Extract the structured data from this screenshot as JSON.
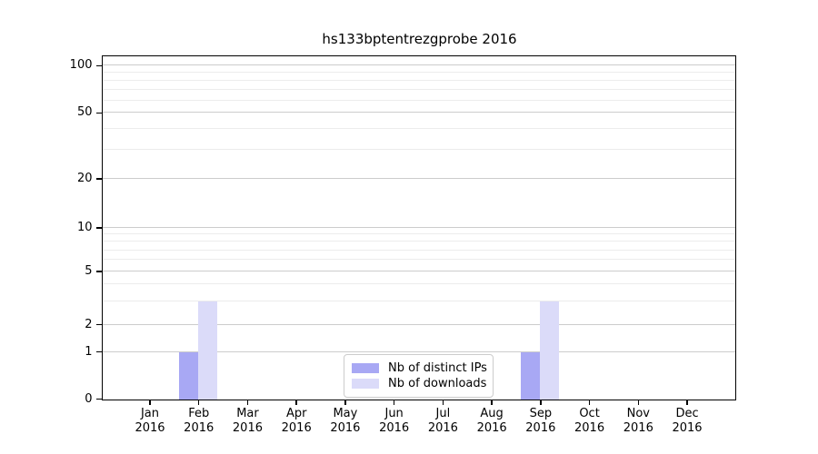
{
  "title": "hs133bptentrezgprobe 2016",
  "y_axis": {
    "tick_labels": [
      "0",
      "1",
      "2",
      "5",
      "10",
      "20",
      "50",
      "100"
    ]
  },
  "x_axis": {
    "labels": [
      {
        "month": "Jan",
        "year": "2016"
      },
      {
        "month": "Feb",
        "year": "2016"
      },
      {
        "month": "Mar",
        "year": "2016"
      },
      {
        "month": "Apr",
        "year": "2016"
      },
      {
        "month": "May",
        "year": "2016"
      },
      {
        "month": "Jun",
        "year": "2016"
      },
      {
        "month": "Jul",
        "year": "2016"
      },
      {
        "month": "Aug",
        "year": "2016"
      },
      {
        "month": "Sep",
        "year": "2016"
      },
      {
        "month": "Oct",
        "year": "2016"
      },
      {
        "month": "Nov",
        "year": "2016"
      },
      {
        "month": "Dec",
        "year": "2016"
      }
    ]
  },
  "legend": {
    "items": [
      {
        "label": "Nb of distinct IPs",
        "color": "#a8a8f4"
      },
      {
        "label": "Nb of downloads",
        "color": "#dbdbf9"
      }
    ]
  },
  "colors": {
    "distinct_ips": "#a8a8f4",
    "downloads": "#dbdbf9",
    "grid_major": "#cccccc",
    "grid_minor": "#ececec",
    "axis": "#000000"
  },
  "chart_data": {
    "type": "bar",
    "title": "hs133bptentrezgprobe 2016",
    "categories": [
      "Jan 2016",
      "Feb 2016",
      "Mar 2016",
      "Apr 2016",
      "May 2016",
      "Jun 2016",
      "Jul 2016",
      "Aug 2016",
      "Sep 2016",
      "Oct 2016",
      "Nov 2016",
      "Dec 2016"
    ],
    "series": [
      {
        "name": "Nb of distinct IPs",
        "color": "#a8a8f4",
        "values": [
          0,
          1,
          0,
          0,
          0,
          0,
          0,
          0,
          1,
          0,
          0,
          0
        ]
      },
      {
        "name": "Nb of downloads",
        "color": "#dbdbf9",
        "values": [
          0,
          3,
          0,
          0,
          0,
          0,
          0,
          0,
          3,
          0,
          0,
          0
        ]
      }
    ],
    "xlabel": "",
    "ylabel": "",
    "yscale": "symlog",
    "yticks": [
      0,
      1,
      2,
      5,
      10,
      20,
      50,
      100
    ],
    "ylim": [
      0,
      110
    ],
    "grid": true,
    "legend_position": "lower center"
  }
}
